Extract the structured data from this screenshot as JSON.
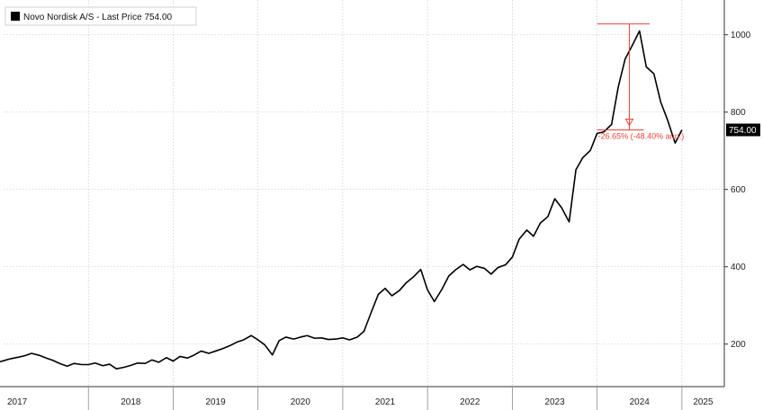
{
  "chart_data": {
    "type": "line",
    "title": "",
    "xlabel": "",
    "ylabel": "",
    "legend": {
      "entries": [
        "Novo Nordisk A/S - Last Price 754.00"
      ],
      "placement": "top-left"
    },
    "x_labels": [
      "2017",
      "2018",
      "2019",
      "2020",
      "2021",
      "2022",
      "2023",
      "2024",
      "2025"
    ],
    "xlim": [
      2017.0,
      2025.5
    ],
    "y_ticks": [
      200,
      400,
      600,
      800,
      1000
    ],
    "ylim": [
      90,
      1090
    ],
    "grid": true,
    "last_value_label": "754.00",
    "annotation": {
      "text": "-26.65% (-48.40% ann.)",
      "peak_value": 1028,
      "peak_x": 2024.38,
      "trough_value": 754,
      "trough_x": 2024.45
    },
    "series": [
      {
        "name": "Novo Nordisk A/S - Last Price 754.00",
        "x": [
          2016.7,
          2016.83,
          2016.92,
          2017.0,
          2017.08,
          2017.17,
          2017.25,
          2017.33,
          2017.42,
          2017.5,
          2017.58,
          2017.67,
          2017.75,
          2017.83,
          2017.92,
          2018.0,
          2018.08,
          2018.17,
          2018.25,
          2018.33,
          2018.42,
          2018.5,
          2018.58,
          2018.67,
          2018.75,
          2018.83,
          2018.92,
          2019.0,
          2019.08,
          2019.17,
          2019.25,
          2019.33,
          2019.42,
          2019.5,
          2019.58,
          2019.67,
          2019.75,
          2019.83,
          2019.92,
          2020.0,
          2020.08,
          2020.17,
          2020.25,
          2020.33,
          2020.42,
          2020.5,
          2020.58,
          2020.67,
          2020.75,
          2020.83,
          2020.92,
          2021.0,
          2021.08,
          2021.17,
          2021.25,
          2021.33,
          2021.42,
          2021.5,
          2021.58,
          2021.67,
          2021.75,
          2021.83,
          2021.92,
          2022.0,
          2022.08,
          2022.17,
          2022.25,
          2022.33,
          2022.42,
          2022.5,
          2022.58,
          2022.67,
          2022.75,
          2022.83,
          2022.92,
          2023.0,
          2023.08,
          2023.17,
          2023.25,
          2023.33,
          2023.42,
          2023.5,
          2023.58,
          2023.67,
          2023.75,
          2023.83,
          2023.92,
          2024.0,
          2024.08,
          2024.17,
          2024.25,
          2024.33,
          2024.42,
          2024.5,
          2024.58,
          2024.67,
          2024.75,
          2024.83,
          2024.92,
          2025.0
        ],
        "y": [
          141,
          146,
          152,
          157,
          162,
          166,
          170,
          176,
          171,
          164,
          158,
          149,
          143,
          150,
          147,
          147,
          151,
          144,
          148,
          136,
          140,
          145,
          151,
          150,
          159,
          153,
          165,
          156,
          168,
          164,
          172,
          182,
          176,
          182,
          188,
          196,
          205,
          211,
          222,
          211,
          198,
          172,
          209,
          218,
          213,
          218,
          222,
          215,
          216,
          212,
          213,
          216,
          211,
          218,
          233,
          279,
          329,
          344,
          325,
          339,
          359,
          373,
          393,
          340,
          310,
          342,
          376,
          392,
          406,
          392,
          401,
          396,
          381,
          398,
          405,
          425,
          471,
          495,
          479,
          513,
          530,
          576,
          553,
          516,
          651,
          682,
          701,
          745,
          749,
          768,
          866,
          937,
          975,
          1010,
          917,
          899,
          826,
          780,
          720,
          754
        ]
      }
    ]
  }
}
